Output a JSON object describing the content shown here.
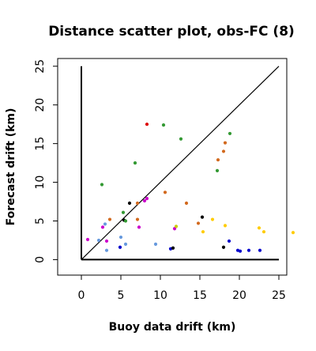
{
  "chart_data": {
    "type": "scatter",
    "title": "Distance scatter plot, obs-FC (8)",
    "xlabel": "Buoy data drift (km)",
    "ylabel": "Forecast drift (km)",
    "xlim": [
      -3,
      26
    ],
    "ylim": [
      -2,
      26
    ],
    "xticks": [
      "0",
      "5",
      "10",
      "15",
      "20",
      "25"
    ],
    "yticks": [
      "0",
      "5",
      "10",
      "15",
      "20",
      "25"
    ],
    "xtick_values": [
      0,
      5,
      10,
      15,
      20,
      25
    ],
    "ytick_values": [
      0,
      5,
      10,
      15,
      20,
      25
    ],
    "reference_line": {
      "from": [
        0,
        0
      ],
      "to": [
        25,
        25
      ]
    },
    "grid": false,
    "legend": "none",
    "points": [
      {
        "x": 0.8,
        "y": 2.6,
        "color": "#cc00cc"
      },
      {
        "x": 2.2,
        "y": 2.5,
        "color": "#6699dd"
      },
      {
        "x": 2.7,
        "y": 4.2,
        "color": "#cc00cc"
      },
      {
        "x": 3.0,
        "y": 4.6,
        "color": "#6699dd"
      },
      {
        "x": 3.2,
        "y": 2.4,
        "color": "#cc00cc"
      },
      {
        "x": 3.2,
        "y": 1.2,
        "color": "#6699dd"
      },
      {
        "x": 3.6,
        "y": 5.2,
        "color": "#d2691e"
      },
      {
        "x": 2.6,
        "y": 9.7,
        "color": "#339933"
      },
      {
        "x": 4.9,
        "y": 1.6,
        "color": "#0000cc"
      },
      {
        "x": 5.0,
        "y": 2.9,
        "color": "#6699dd"
      },
      {
        "x": 5.3,
        "y": 6.1,
        "color": "#339933"
      },
      {
        "x": 5.4,
        "y": 5.1,
        "color": "#000000"
      },
      {
        "x": 5.6,
        "y": 5.0,
        "color": "#339933"
      },
      {
        "x": 5.6,
        "y": 2.0,
        "color": "#6699dd"
      },
      {
        "x": 6.1,
        "y": 7.3,
        "color": "#000000"
      },
      {
        "x": 6.8,
        "y": 12.5,
        "color": "#339933"
      },
      {
        "x": 7.1,
        "y": 7.3,
        "color": "#d2691e"
      },
      {
        "x": 7.1,
        "y": 5.2,
        "color": "#d2691e"
      },
      {
        "x": 7.3,
        "y": 4.2,
        "color": "#cc00cc"
      },
      {
        "x": 8.0,
        "y": 7.6,
        "color": "#cc00cc"
      },
      {
        "x": 8.3,
        "y": 7.9,
        "color": "#cc00cc"
      },
      {
        "x": 8.3,
        "y": 17.5,
        "color": "#dd0000"
      },
      {
        "x": 9.4,
        "y": 2.0,
        "color": "#6699dd"
      },
      {
        "x": 10.4,
        "y": 17.4,
        "color": "#339933"
      },
      {
        "x": 10.6,
        "y": 8.7,
        "color": "#d2691e"
      },
      {
        "x": 11.3,
        "y": 1.4,
        "color": "#0000cc"
      },
      {
        "x": 11.6,
        "y": 1.5,
        "color": "#000000"
      },
      {
        "x": 11.8,
        "y": 4.0,
        "color": "#cc00cc"
      },
      {
        "x": 12.0,
        "y": 4.3,
        "color": "#cccc00"
      },
      {
        "x": 12.6,
        "y": 15.6,
        "color": "#339933"
      },
      {
        "x": 13.3,
        "y": 7.3,
        "color": "#d2691e"
      },
      {
        "x": 14.8,
        "y": 4.7,
        "color": "#d2691e"
      },
      {
        "x": 15.3,
        "y": 5.5,
        "color": "#000000"
      },
      {
        "x": 15.4,
        "y": 3.6,
        "color": "#ffcc00"
      },
      {
        "x": 16.6,
        "y": 5.2,
        "color": "#ffcc00"
      },
      {
        "x": 17.2,
        "y": 11.5,
        "color": "#339933"
      },
      {
        "x": 17.3,
        "y": 12.9,
        "color": "#d2691e"
      },
      {
        "x": 18.0,
        "y": 14.0,
        "color": "#d2691e"
      },
      {
        "x": 18.2,
        "y": 15.1,
        "color": "#d2691e"
      },
      {
        "x": 18.8,
        "y": 16.3,
        "color": "#339933"
      },
      {
        "x": 18.0,
        "y": 1.6,
        "color": "#000000"
      },
      {
        "x": 18.2,
        "y": 4.4,
        "color": "#ffcc00"
      },
      {
        "x": 18.7,
        "y": 2.4,
        "color": "#0000cc"
      },
      {
        "x": 19.8,
        "y": 1.2,
        "color": "#0000cc"
      },
      {
        "x": 20.1,
        "y": 1.1,
        "color": "#0000cc"
      },
      {
        "x": 21.2,
        "y": 1.2,
        "color": "#0000cc"
      },
      {
        "x": 22.6,
        "y": 1.2,
        "color": "#0000cc"
      },
      {
        "x": 22.5,
        "y": 4.1,
        "color": "#ffcc00"
      },
      {
        "x": 23.1,
        "y": 3.6,
        "color": "#ffcc00"
      },
      {
        "x": 26.8,
        "y": 3.5,
        "color": "#ffcc00"
      }
    ]
  }
}
